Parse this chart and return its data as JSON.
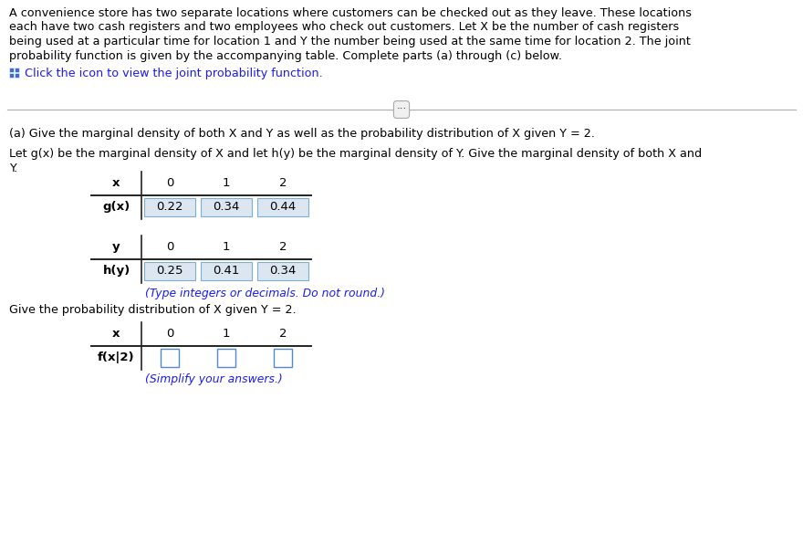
{
  "intro_text": [
    "A convenience store has two separate locations where customers can be checked out as they leave. These locations",
    "each have two cash registers and two employees who check out customers. Let X be the number of cash registers",
    "being used at a particular time for location 1 and Y the number being used at the same time for location 2. The joint",
    "probability function is given by the accompanying table. Complete parts (a) through (c) below."
  ],
  "click_text": "Click the icon to view the joint probability function.",
  "part_a_label": "(a) Give the marginal density of both X and Y as well as the probability distribution of X given Y = 2.",
  "let_text": "Let g(x) be the marginal density of X and let h(y) be the marginal density of Y. Give the marginal density of both X and",
  "let_text2": "Y.",
  "table1_x_label": "x",
  "table1_gx_label": "g(x)",
  "table1_x_vals": [
    "0",
    "1",
    "2"
  ],
  "table1_gx_vals": [
    "0.22",
    "0.34",
    "0.44"
  ],
  "table2_y_label": "y",
  "table2_hy_label": "h(y)",
  "table2_y_vals": [
    "0",
    "1",
    "2"
  ],
  "table2_hy_vals": [
    "0.25",
    "0.41",
    "0.34"
  ],
  "type_note": "(Type integers or decimals. Do not round.)",
  "give_text": "Give the probability distribution of X given Y = 2.",
  "table3_x_label": "x",
  "table3_fxy_label": "f(x|2)",
  "table3_x_vals": [
    "0",
    "1",
    "2"
  ],
  "simplify_note": "(Simplify your answers.)",
  "bg_color": "#ffffff",
  "text_color": "#000000",
  "blue_color": "#1a1aff",
  "cell_fill": "#dce6f1",
  "cell_border": "#7bafd4",
  "empty_box_border": "#5588cc",
  "font_size_main": 9.2,
  "font_size_table": 9.5,
  "grid_icon_color": "#3a6fd8",
  "separator_color": "#b0b0b0",
  "ellipsis_bg": "#f0f0f0",
  "ellipsis_border": "#aaaaaa"
}
